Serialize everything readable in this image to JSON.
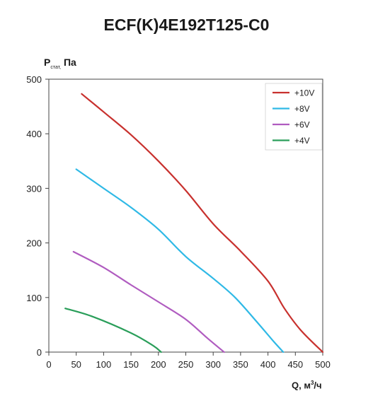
{
  "chart_data": {
    "type": "line",
    "title": "ECF(K)4E192T125-C0",
    "ylabel_main": "P",
    "ylabel_sub": "стат,",
    "ylabel_unit": "Па",
    "xlabel_main": "Q, м",
    "xlabel_sup": "3",
    "xlabel_unit": "/ч",
    "xlim": [
      0,
      500
    ],
    "ylim": [
      0,
      500
    ],
    "x_ticks": [
      0,
      50,
      100,
      150,
      200,
      250,
      300,
      350,
      400,
      450,
      500
    ],
    "y_ticks": [
      0,
      100,
      200,
      300,
      400,
      500
    ],
    "grid": false,
    "legend_position": "top-right",
    "series": [
      {
        "name": "+10V",
        "color": "#c8312e",
        "points": [
          [
            60,
            473
          ],
          [
            100,
            440
          ],
          [
            150,
            398
          ],
          [
            200,
            350
          ],
          [
            250,
            296
          ],
          [
            300,
            235
          ],
          [
            350,
            185
          ],
          [
            400,
            130
          ],
          [
            430,
            80
          ],
          [
            460,
            40
          ],
          [
            500,
            0
          ]
        ]
      },
      {
        "name": "+8V",
        "color": "#2fb9e6",
        "points": [
          [
            50,
            335
          ],
          [
            100,
            300
          ],
          [
            150,
            265
          ],
          [
            200,
            225
          ],
          [
            250,
            175
          ],
          [
            300,
            135
          ],
          [
            340,
            100
          ],
          [
            380,
            55
          ],
          [
            410,
            20
          ],
          [
            428,
            0
          ]
        ]
      },
      {
        "name": "+6V",
        "color": "#b05cc0",
        "points": [
          [
            45,
            184
          ],
          [
            100,
            155
          ],
          [
            150,
            123
          ],
          [
            200,
            92
          ],
          [
            250,
            60
          ],
          [
            290,
            25
          ],
          [
            320,
            0
          ]
        ]
      },
      {
        "name": "+4V",
        "color": "#2a9e5a",
        "points": [
          [
            30,
            80
          ],
          [
            80,
            65
          ],
          [
            150,
            35
          ],
          [
            190,
            12
          ],
          [
            205,
            0
          ]
        ]
      }
    ]
  }
}
